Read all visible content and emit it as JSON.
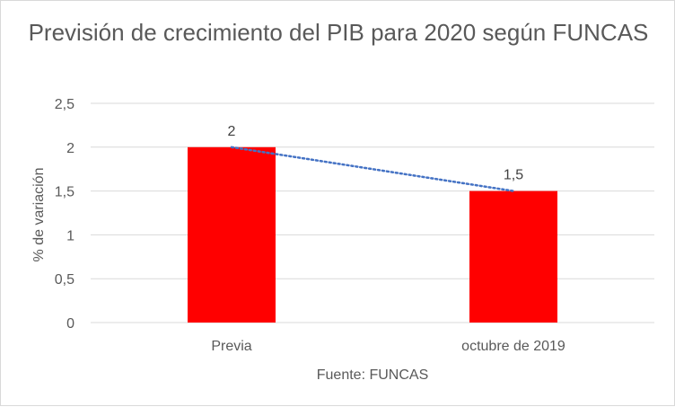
{
  "chart_data": {
    "type": "bar",
    "title": "Previsión de crecimiento del PIB para 2020 según FUNCAS",
    "categories": [
      "Previa",
      "octubre de 2019"
    ],
    "series": [
      {
        "values": [
          2,
          1.5
        ],
        "color": "#ff0000"
      }
    ],
    "trendline": {
      "style": "dotted",
      "color": "#4472c4"
    },
    "data_labels": [
      "2",
      "1,5"
    ],
    "xlabel": "Fuente: FUNCAS",
    "ylabel": "% de variación",
    "ylim": [
      0,
      2.5
    ],
    "yticks": [
      0,
      0.5,
      1,
      1.5,
      2,
      2.5
    ],
    "ytick_labels": [
      "0",
      "0,5",
      "1",
      "1,5",
      "2",
      "2,5"
    ],
    "grid": true,
    "legend": "none"
  }
}
